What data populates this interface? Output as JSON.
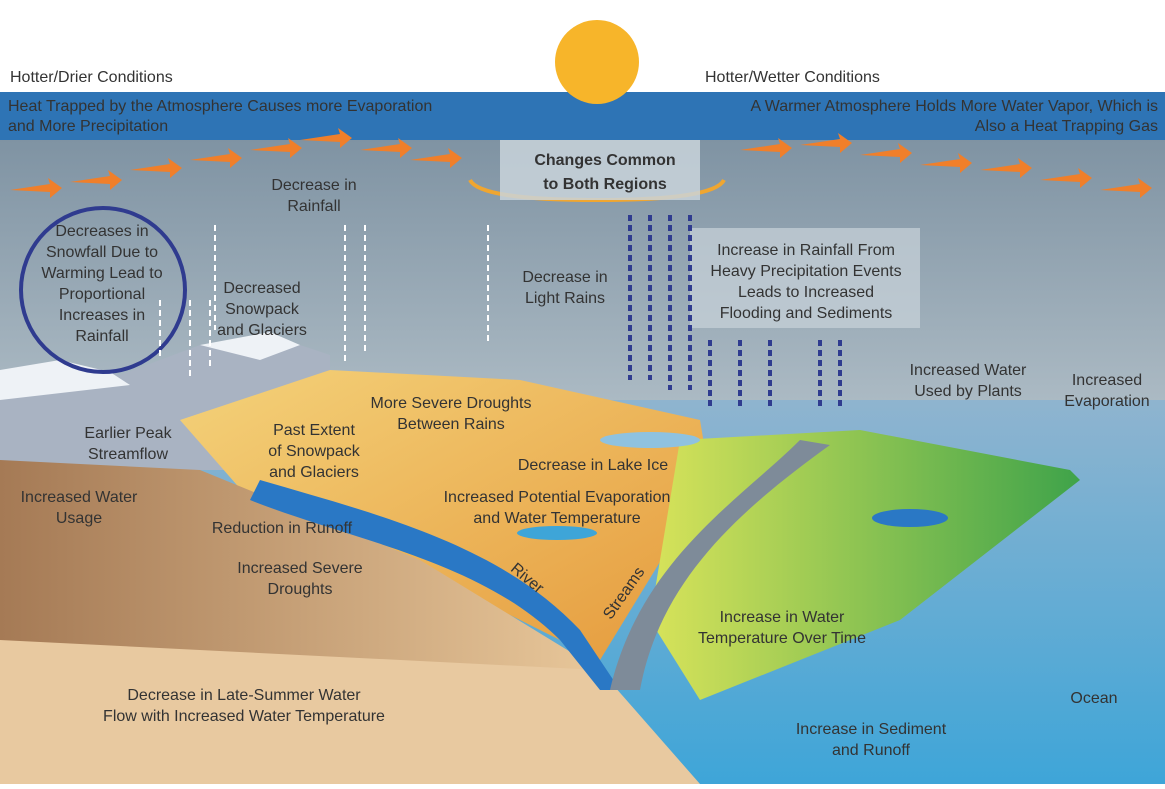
{
  "header": {
    "left_title": "Hotter/Drier Conditions",
    "right_title": "Hotter/Wetter Conditions",
    "left_subtitle": [
      "Heat Trapped by the Atmosphere Causes more Evaporation",
      "and More Precipitation"
    ],
    "right_subtitle": [
      "A Warmer Atmosphere Holds More Water Vapor, Which is",
      "Also a Heat Trapping Gas"
    ]
  },
  "center_label": [
    "Changes Common",
    "to Both Regions"
  ],
  "labels": [
    {
      "lines": [
        "Decrease in",
        "Rainfall"
      ]
    },
    {
      "lines": [
        "Decreases in",
        "Snowfall Due to",
        "Warming  Lead to",
        "Proportional",
        "Increases in",
        "Rainfall"
      ]
    },
    {
      "lines": [
        "Decreased",
        "Snowpack",
        "and Glaciers"
      ]
    },
    {
      "lines": [
        "Decrease in",
        "Light Rains"
      ]
    },
    {
      "lines": [
        "Increase in Rainfall From",
        "Heavy Precipitation Events",
        "Leads to Increased",
        "Flooding and Sediments"
      ]
    },
    {
      "lines": [
        "Increased Water",
        "Used by Plants"
      ]
    },
    {
      "lines": [
        "Increased",
        "Evaporation"
      ]
    },
    {
      "lines": [
        "More Severe Droughts",
        "Between Rains"
      ]
    },
    {
      "lines": [
        "Earlier Peak",
        "Streamflow"
      ]
    },
    {
      "lines": [
        "Past Extent",
        "of Snowpack",
        "and Glaciers"
      ]
    },
    {
      "lines": [
        "Decrease in Lake Ice"
      ]
    },
    {
      "lines": [
        "Increased Potential Evaporation",
        "and Water Temperature"
      ]
    },
    {
      "lines": [
        "Increased Water",
        "Usage"
      ]
    },
    {
      "lines": [
        "Reduction in Runoff"
      ]
    },
    {
      "lines": [
        "Increased Severe",
        "Droughts"
      ]
    },
    {
      "lines": [
        "Increase in Water",
        "Temperature Over Time"
      ]
    },
    {
      "lines": [
        "Decrease in Late-Summer Water",
        "Flow with Increased Water Temperature"
      ]
    },
    {
      "lines": [
        "Increase in Sediment",
        "and Runoff"
      ]
    },
    {
      "lines": [
        "Ocean"
      ]
    },
    {
      "lines": [
        "River"
      ]
    },
    {
      "lines": [
        "Streams"
      ]
    }
  ]
}
